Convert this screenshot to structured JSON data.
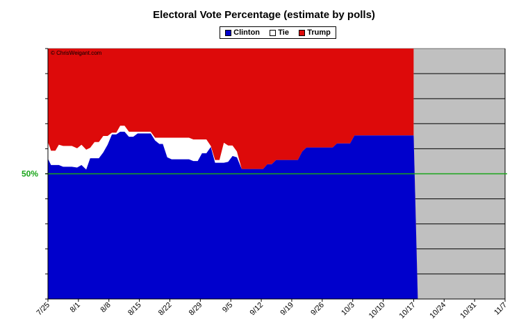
{
  "chart_data": {
    "type": "area",
    "title": "Electoral Vote Percentage (estimate by polls)",
    "watermark": "© ChrisWeigant.com",
    "reference_line": {
      "value": 50,
      "label": "50%",
      "color": "#1aa51a"
    },
    "xlabel": "",
    "ylabel": "",
    "ylim": [
      0,
      100
    ],
    "x_tick_labels": [
      "7/25",
      "8/1",
      "8/8",
      "8/15",
      "8/22",
      "8/29",
      "9/5",
      "9/12",
      "9/19",
      "9/26",
      "10/3",
      "10/10",
      "10/17",
      "10/24",
      "10/31",
      "11/7"
    ],
    "x_tick_days": [
      0,
      7,
      14,
      21,
      28,
      35,
      42,
      49,
      56,
      63,
      70,
      77,
      84,
      91,
      98,
      105
    ],
    "data_end_day": 84,
    "series": [
      {
        "name": "Clinton",
        "color": "#0000cc"
      },
      {
        "name": "Tie",
        "color": "#ffffff"
      },
      {
        "name": "Trump",
        "color": "#dd0a0a"
      }
    ],
    "clinton_top": [
      [
        0,
        56
      ],
      [
        0.7,
        53.5
      ],
      [
        1.7,
        53.5
      ],
      [
        2.5,
        53.5
      ],
      [
        3.5,
        52.8
      ],
      [
        4.5,
        52.8
      ],
      [
        5.5,
        52.8
      ],
      [
        6.7,
        52.5
      ],
      [
        7.7,
        53.5
      ],
      [
        8.8,
        51.7
      ],
      [
        9.7,
        56.2
      ],
      [
        10.7,
        56.2
      ],
      [
        11.7,
        56.2
      ],
      [
        12.7,
        58.5
      ],
      [
        13.7,
        61.6
      ],
      [
        14.7,
        65.7
      ],
      [
        15.7,
        65.7
      ],
      [
        16.6,
        66.8
      ],
      [
        17.6,
        66.8
      ],
      [
        18.6,
        64.8
      ],
      [
        19.6,
        64.8
      ],
      [
        20.6,
        66.1
      ],
      [
        21.6,
        66.1
      ],
      [
        22.6,
        66.1
      ],
      [
        23.6,
        66.1
      ],
      [
        24.6,
        63.3
      ],
      [
        25.6,
        61.9
      ],
      [
        26.4,
        61.9
      ],
      [
        27.4,
        56.6
      ],
      [
        28.4,
        55.8
      ],
      [
        29.4,
        55.8
      ],
      [
        30.4,
        55.8
      ],
      [
        31.4,
        55.8
      ],
      [
        32.4,
        55.8
      ],
      [
        33.4,
        55.1
      ],
      [
        34.4,
        55.1
      ],
      [
        35.4,
        58.2
      ],
      [
        36.4,
        58.2
      ],
      [
        37.4,
        60.7
      ],
      [
        38.4,
        54.4
      ],
      [
        39.4,
        54.4
      ],
      [
        40.4,
        54.4
      ],
      [
        41.4,
        54.8
      ],
      [
        42.4,
        57.1
      ],
      [
        43.4,
        56.6
      ],
      [
        44.5,
        51.9
      ],
      [
        45.4,
        51.9
      ],
      [
        46.4,
        51.9
      ],
      [
        47.4,
        51.9
      ],
      [
        48.4,
        51.9
      ],
      [
        49.4,
        51.9
      ],
      [
        50.4,
        53.8
      ],
      [
        51.4,
        53.8
      ],
      [
        52.4,
        55.5
      ],
      [
        53.4,
        55.5
      ],
      [
        54.4,
        55.5
      ],
      [
        55.4,
        55.5
      ],
      [
        56.4,
        55.5
      ],
      [
        57.4,
        55.5
      ],
      [
        58.4,
        58.9
      ],
      [
        59.4,
        60.5
      ],
      [
        60.4,
        60.5
      ],
      [
        61.4,
        60.5
      ],
      [
        62.4,
        60.5
      ],
      [
        63.4,
        60.5
      ],
      [
        64.4,
        60.5
      ],
      [
        65.4,
        60.5
      ],
      [
        66.4,
        62.1
      ],
      [
        67.4,
        62.1
      ],
      [
        68.4,
        62.1
      ],
      [
        69.4,
        62.1
      ],
      [
        70.4,
        65.3
      ],
      [
        71.4,
        65.3
      ],
      [
        72.4,
        65.3
      ],
      [
        73.4,
        65.3
      ],
      [
        74.4,
        65.3
      ],
      [
        75.4,
        65.3
      ],
      [
        76.4,
        65.3
      ],
      [
        77.4,
        65.3
      ],
      [
        78.4,
        65.3
      ],
      [
        84,
        65.3
      ]
    ],
    "trump_bottom": [
      [
        0,
        62.7
      ],
      [
        0.7,
        59.2
      ],
      [
        1.7,
        59.2
      ],
      [
        2.5,
        61.6
      ],
      [
        3.5,
        61.1
      ],
      [
        4.5,
        61.1
      ],
      [
        5.5,
        61.1
      ],
      [
        6.7,
        60.2
      ],
      [
        7.7,
        61.6
      ],
      [
        8.8,
        59.6
      ],
      [
        9.7,
        60.4
      ],
      [
        10.7,
        62.7
      ],
      [
        11.7,
        62.7
      ],
      [
        12.7,
        65.1
      ],
      [
        13.7,
        65.1
      ],
      [
        14.7,
        66.4
      ],
      [
        15.7,
        66.4
      ],
      [
        16.6,
        69.2
      ],
      [
        17.6,
        69.2
      ],
      [
        18.6,
        66.8
      ],
      [
        19.6,
        66.8
      ],
      [
        20.6,
        66.8
      ],
      [
        21.6,
        66.8
      ],
      [
        22.6,
        66.8
      ],
      [
        23.6,
        66.8
      ],
      [
        24.6,
        64.4
      ],
      [
        25.6,
        64.4
      ],
      [
        26.4,
        64.4
      ],
      [
        27.4,
        64.4
      ],
      [
        28.4,
        64.4
      ],
      [
        29.4,
        64.4
      ],
      [
        30.4,
        64.4
      ],
      [
        31.4,
        64.4
      ],
      [
        32.4,
        64.4
      ],
      [
        33.4,
        63.7
      ],
      [
        34.4,
        63.7
      ],
      [
        35.4,
        63.7
      ],
      [
        36.4,
        63.7
      ],
      [
        37.4,
        61.1
      ],
      [
        38.4,
        55.5
      ],
      [
        39.4,
        55.5
      ],
      [
        40.4,
        62.4
      ],
      [
        41.4,
        61.3
      ],
      [
        42.4,
        61.3
      ],
      [
        43.4,
        58.9
      ],
      [
        44.5,
        51.9
      ],
      [
        45.4,
        51.9
      ],
      [
        46.4,
        51.9
      ],
      [
        47.4,
        51.9
      ],
      [
        48.4,
        51.9
      ],
      [
        49.4,
        51.9
      ],
      [
        50.4,
        53.8
      ],
      [
        51.4,
        53.8
      ],
      [
        52.4,
        55.5
      ],
      [
        53.4,
        55.5
      ],
      [
        54.4,
        55.5
      ],
      [
        55.4,
        55.5
      ],
      [
        56.4,
        55.5
      ],
      [
        57.4,
        55.5
      ],
      [
        58.4,
        58.9
      ],
      [
        59.4,
        60.5
      ],
      [
        60.4,
        60.5
      ],
      [
        61.4,
        60.5
      ],
      [
        62.4,
        60.5
      ],
      [
        63.4,
        60.5
      ],
      [
        64.4,
        60.5
      ],
      [
        65.4,
        60.5
      ],
      [
        66.4,
        62.1
      ],
      [
        67.4,
        62.1
      ],
      [
        68.4,
        62.1
      ],
      [
        69.4,
        62.1
      ],
      [
        70.4,
        65.3
      ],
      [
        71.4,
        65.3
      ],
      [
        72.4,
        65.3
      ],
      [
        73.4,
        65.3
      ],
      [
        74.4,
        65.3
      ],
      [
        75.4,
        65.3
      ],
      [
        76.4,
        65.3
      ],
      [
        77.4,
        65.3
      ],
      [
        78.4,
        65.3
      ],
      [
        84,
        65.3
      ]
    ],
    "future_fill_color": "#c0c0c0",
    "grid": true
  }
}
